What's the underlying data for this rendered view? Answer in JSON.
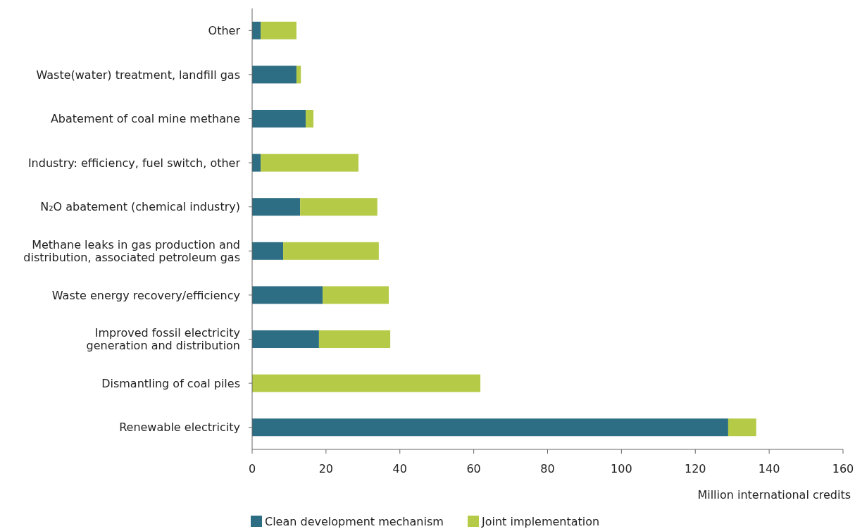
{
  "chart_data": {
    "type": "bar",
    "orientation": "horizontal",
    "stacked": true,
    "categories": [
      "Other",
      "Waste(water) treatment, landfill gas",
      "Abatement of coal mine methane",
      "Industry: efficiency, fuel switch, other",
      "N₂O abatement (chemical industry)",
      "Methane leaks in gas production and\ndistribution, associated petroleum gas",
      "Waste energy recovery/efficiency",
      "Improved fossil electricity\ngeneration and distribution",
      "Dismantling of coal piles",
      "Renewable electricity"
    ],
    "series": [
      {
        "name": "Clean development mechanism",
        "color": "#2e6e84",
        "values": [
          2.3,
          12.0,
          14.5,
          2.3,
          13.0,
          8.4,
          19.1,
          18.1,
          0,
          128.9
        ]
      },
      {
        "name": "Joint implementation",
        "color": "#b5cb47",
        "values": [
          9.7,
          1.2,
          2.1,
          26.5,
          20.9,
          25.9,
          17.9,
          19.3,
          61.8,
          7.6
        ]
      }
    ],
    "xlim": [
      0,
      160
    ],
    "xticks": [
      0,
      20,
      40,
      60,
      80,
      100,
      120,
      140,
      160
    ],
    "xlabel": "Million international credits",
    "grid": false,
    "legend": "bottom"
  }
}
